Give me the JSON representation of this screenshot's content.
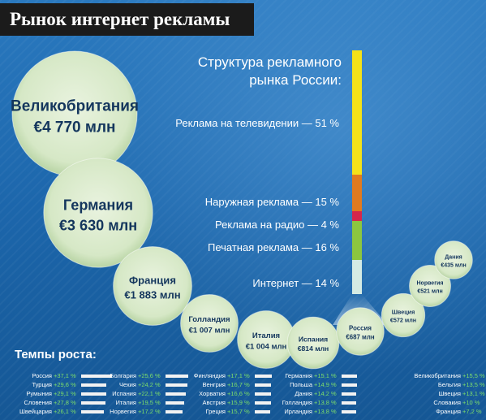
{
  "title": "Рынок интернет рекламы",
  "colors": {
    "bubble": "#dceccd",
    "bubble_text": "#14365d",
    "growth_value": "#7dde6a",
    "tv": "#f4e219",
    "outdoor": "#e07a1f",
    "radio": "#d6264b",
    "print": "#8cc63f",
    "internet": "#d5ebe4"
  },
  "growth_title": "Темпы роста:",
  "chart_data": [
    {
      "type": "bubble",
      "categories": [
        "Великобритания",
        "Германия",
        "Франция",
        "Голландия",
        "Италия",
        "Испания",
        "Россия",
        "Швеция",
        "Норвегия",
        "Дания"
      ],
      "values": [
        4770,
        3630,
        1883,
        1007,
        1004,
        814,
        687,
        572,
        521,
        435
      ],
      "labels": [
        "€4 770 млн",
        "€3 630 млн",
        "€1 883 млн",
        "€1 007 млн",
        "€1 004 млн",
        "€814 млн",
        "€687 млн",
        "€572 млн",
        "€521 млн",
        "€435 млн"
      ]
    },
    {
      "type": "bar",
      "title": "Структура рекламного рынка России:",
      "categories": [
        "Реклама на телевидении",
        "Наружная реклама",
        "Реклама на радио",
        "Печатная реклама",
        "Интернет"
      ],
      "values": [
        51,
        15,
        4,
        16,
        14
      ],
      "labels": [
        "Реклама на телевидении — 51 %",
        "Наружная реклама — 15 %",
        "Реклама на радио — 4 %",
        "Печатная реклама — 16 %",
        "Интернет — 14 %"
      ]
    },
    {
      "type": "bar",
      "title": "Темпы роста:",
      "columns": [
        [
          {
            "name": "Россия",
            "value": "+37,1 %",
            "v": 37.1
          },
          {
            "name": "Турция",
            "value": "+29,6 %",
            "v": 29.6
          },
          {
            "name": "Румыния",
            "value": "+29,1 %",
            "v": 29.1
          },
          {
            "name": "Словения",
            "value": "+27,8 %",
            "v": 27.8
          },
          {
            "name": "Швейцария",
            "value": "+26,1 %",
            "v": 26.1
          }
        ],
        [
          {
            "name": "Болгария",
            "value": "+25,6 %",
            "v": 25.6
          },
          {
            "name": "Чехия",
            "value": "+24,2 %",
            "v": 24.2
          },
          {
            "name": "Испания",
            "value": "+22,1 %",
            "v": 22.1
          },
          {
            "name": "Италия",
            "value": "+19,5 %",
            "v": 19.5
          },
          {
            "name": "Норвегия",
            "value": "+17,2 %",
            "v": 17.2
          }
        ],
        [
          {
            "name": "Финляндия",
            "value": "+17,1 %",
            "v": 17.1
          },
          {
            "name": "Венгрия",
            "value": "+16,7 %",
            "v": 16.7
          },
          {
            "name": "Хорватия",
            "value": "+16,6 %",
            "v": 16.6
          },
          {
            "name": "Австрия",
            "value": "+15,9 %",
            "v": 15.9
          },
          {
            "name": "Греция",
            "value": "+15,7 %",
            "v": 15.7
          }
        ],
        [
          {
            "name": "Германия",
            "value": "+15,1 %",
            "v": 15.1
          },
          {
            "name": "Польша",
            "value": "+14,9 %",
            "v": 14.9
          },
          {
            "name": "Дания",
            "value": "+14,2 %",
            "v": 14.2
          },
          {
            "name": "Голландия",
            "value": "+13,8 %",
            "v": 13.8
          },
          {
            "name": "Ирландия",
            "value": "+13,8 %",
            "v": 13.8
          }
        ],
        [
          {
            "name": "Великобритания",
            "value": "+15,5 %",
            "v": 15.5
          },
          {
            "name": "Бельгия",
            "value": "+13,5 %",
            "v": 13.5
          },
          {
            "name": "Швеция",
            "value": "+13,1 %",
            "v": 13.1
          },
          {
            "name": "Словакия",
            "value": "+10 %",
            "v": 10
          },
          {
            "name": "Франция",
            "value": "+7,2 %",
            "v": 7.2
          }
        ]
      ]
    }
  ]
}
